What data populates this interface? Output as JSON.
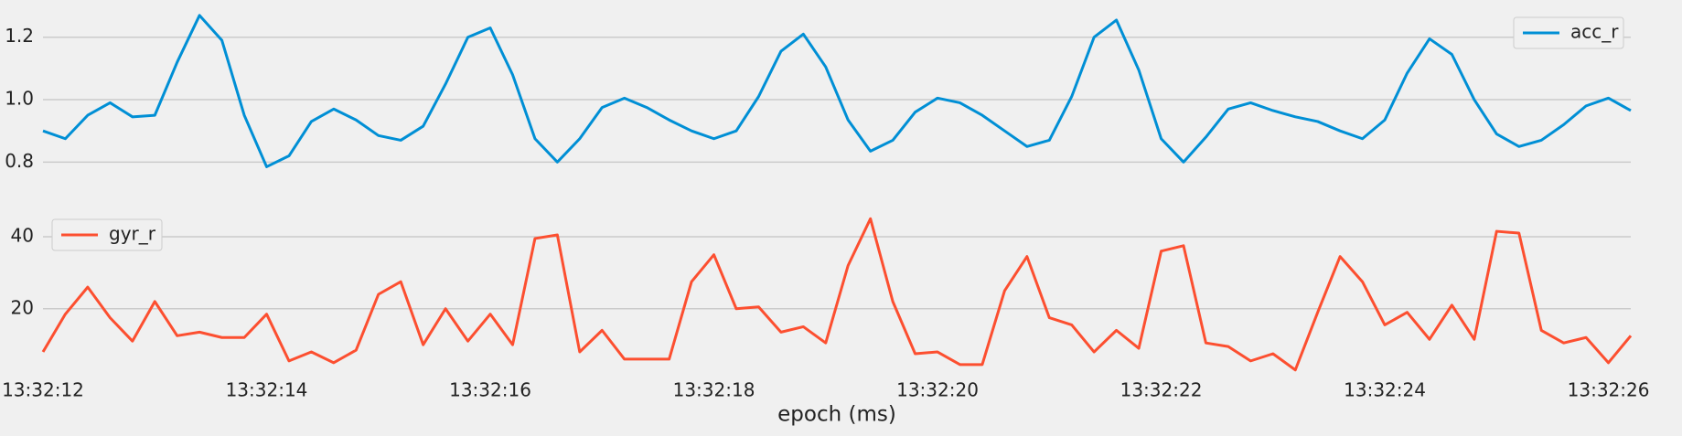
{
  "chart_data": [
    {
      "type": "line",
      "x": [
        12,
        12.2,
        12.4,
        12.6,
        12.8,
        13,
        13.2,
        13.4,
        13.6,
        13.8,
        14,
        14.2,
        14.4,
        14.6,
        14.8,
        15,
        15.2,
        15.4,
        15.6,
        15.8,
        16,
        16.2,
        16.4,
        16.6,
        16.8,
        17,
        17.2,
        17.4,
        17.6,
        17.8,
        18,
        18.2,
        18.4,
        18.6,
        18.8,
        19,
        19.2,
        19.4,
        19.6,
        19.8,
        20,
        20.2,
        20.4,
        20.6,
        20.8,
        21,
        21.2,
        21.4,
        21.6,
        21.8,
        22,
        22.2,
        22.4,
        22.6,
        22.8,
        23,
        23.2,
        23.4,
        23.6,
        23.8,
        24,
        24.2,
        24.4,
        24.6,
        24.8,
        25,
        25.2,
        25.4,
        25.6,
        25.8,
        26,
        26.2
      ],
      "xlim": [
        12,
        26.2
      ],
      "series": [
        {
          "name": "acc_r",
          "color": "#008fd5",
          "values": [
            0.9,
            0.875,
            0.95,
            0.99,
            0.945,
            0.95,
            1.12,
            1.27,
            1.19,
            0.95,
            0.785,
            0.82,
            0.93,
            0.97,
            0.935,
            0.885,
            0.87,
            0.915,
            1.05,
            1.2,
            1.23,
            1.08,
            0.875,
            0.8,
            0.875,
            0.975,
            1.005,
            0.975,
            0.935,
            0.9,
            0.875,
            0.9,
            1.01,
            1.155,
            1.21,
            1.105,
            0.935,
            0.835,
            0.87,
            0.96,
            1.005,
            0.99,
            0.95,
            0.9,
            0.85,
            0.87,
            1.01,
            1.2,
            1.255,
            1.095,
            0.875,
            0.8,
            0.88,
            0.97,
            0.99,
            0.965,
            0.945,
            0.93,
            0.9,
            0.875,
            0.935,
            1.085,
            1.195,
            1.145,
            1.0,
            0.89,
            0.85,
            0.87,
            0.92,
            0.98,
            1.005,
            0.965
          ]
        }
      ],
      "ylim": [
        0.76,
        1.29
      ],
      "yticks": [
        {
          "value": 0.8,
          "label": "0.8"
        },
        {
          "value": 1.0,
          "label": "1.0"
        },
        {
          "value": 1.2,
          "label": "1.2"
        }
      ],
      "grid": true,
      "legend": "upper right"
    },
    {
      "type": "line",
      "x": [
        12,
        12.2,
        12.4,
        12.6,
        12.8,
        13,
        13.2,
        13.4,
        13.6,
        13.8,
        14,
        14.2,
        14.4,
        14.6,
        14.8,
        15,
        15.2,
        15.4,
        15.6,
        15.8,
        16,
        16.2,
        16.4,
        16.6,
        16.8,
        17,
        17.2,
        17.4,
        17.6,
        17.8,
        18,
        18.2,
        18.4,
        18.6,
        18.8,
        19,
        19.2,
        19.4,
        19.6,
        19.8,
        20,
        20.2,
        20.4,
        20.6,
        20.8,
        21,
        21.2,
        21.4,
        21.6,
        21.8,
        22,
        22.2,
        22.4,
        22.6,
        22.8,
        23,
        23.2,
        23.4,
        23.6,
        23.8,
        24,
        24.2,
        24.4,
        24.6,
        24.8,
        25,
        25.2,
        25.4,
        25.6,
        25.8,
        26,
        26.2
      ],
      "xlim": [
        12,
        26.2
      ],
      "xlabel": "epoch (ms)",
      "xticks": [
        {
          "value": 12,
          "label": "13:32:12"
        },
        {
          "value": 14,
          "label": "13:32:14"
        },
        {
          "value": 16,
          "label": "13:32:16"
        },
        {
          "value": 18,
          "label": "13:32:18"
        },
        {
          "value": 20,
          "label": "13:32:20"
        },
        {
          "value": 22,
          "label": "13:32:22"
        },
        {
          "value": 24,
          "label": "13:32:24"
        },
        {
          "value": 26,
          "label": "13:32:26"
        }
      ],
      "series": [
        {
          "name": "gyr_r",
          "color": "#fc4f30",
          "values": [
            8,
            18.5,
            26,
            17.5,
            11,
            22,
            12.5,
            13.5,
            12,
            12,
            18.5,
            5.5,
            8,
            5,
            8.5,
            24,
            27.5,
            10,
            20,
            11,
            18.5,
            10,
            39.5,
            40.5,
            8,
            14,
            6,
            6,
            6,
            27.5,
            35,
            20,
            20.5,
            13.5,
            15,
            10.5,
            32,
            45,
            22,
            7.5,
            8,
            4.5,
            4.5,
            25,
            34.5,
            17.5,
            15.5,
            8,
            14,
            9,
            36,
            37.5,
            10.5,
            9.5,
            5.5,
            7.5,
            3,
            19,
            34.5,
            27.5,
            15.5,
            19,
            11.5,
            21,
            11.5,
            41.5,
            41,
            14,
            10.5,
            12,
            5,
            12.5
          ]
        }
      ],
      "ylim": [
        0.9,
        47.1
      ],
      "yticks": [
        20,
        40
      ],
      "grid": true,
      "legend": "upper left"
    }
  ]
}
